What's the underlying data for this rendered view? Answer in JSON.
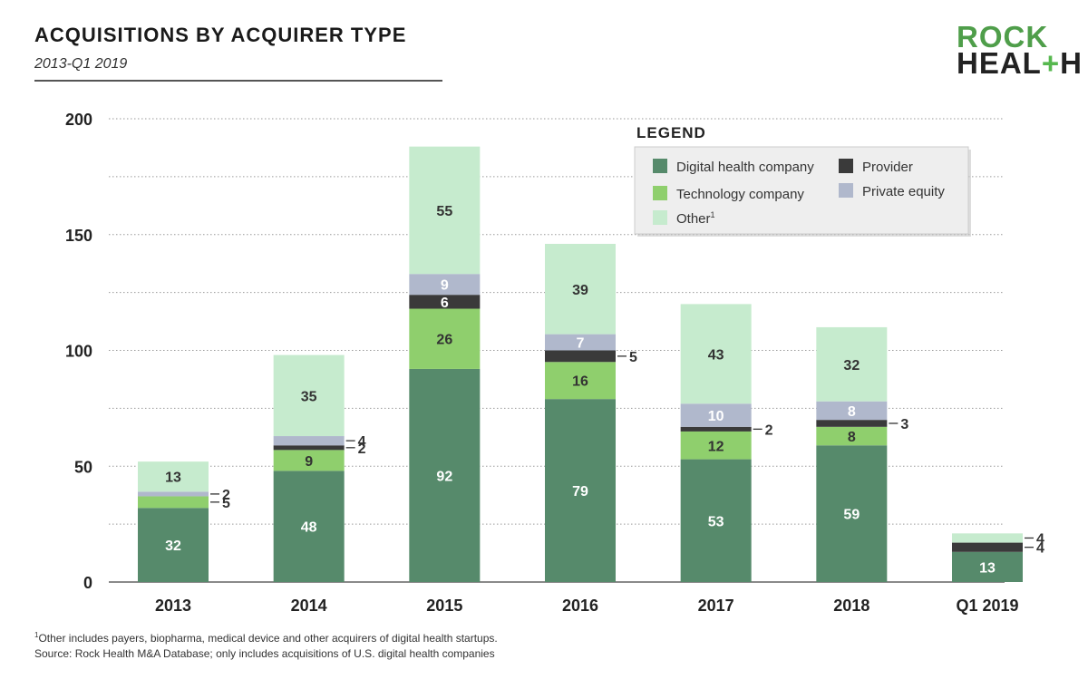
{
  "header": {
    "title": "ACQUISITIONS BY ACQUIRER TYPE",
    "subtitle": "2013-Q1 2019"
  },
  "logo": {
    "line1": "ROCK",
    "line2_a": "HEAL",
    "line2_plus": "+",
    "line2_b": "H"
  },
  "legend": {
    "title": "LEGEND",
    "items": [
      {
        "label": "Digital health company",
        "color": "#568a6b"
      },
      {
        "label": "Technology company",
        "color": "#8fcf6d"
      },
      {
        "label": "Other",
        "sup": "1",
        "color": "#c6ebce"
      },
      {
        "label": "Provider",
        "color": "#3a3a3a"
      },
      {
        "label": "Private equity",
        "color": "#b0b8cc"
      }
    ]
  },
  "chart_data": {
    "type": "bar",
    "stacked": true,
    "categories": [
      "2013",
      "2014",
      "2015",
      "2016",
      "2017",
      "2018",
      "Q1 2019"
    ],
    "ylim": [
      0,
      200
    ],
    "yticks": [
      0,
      50,
      100,
      150,
      200
    ],
    "grid": true,
    "legend_position": "top-right",
    "series": [
      {
        "name": "Digital health company",
        "color": "#568a6b",
        "values": [
          32,
          48,
          92,
          79,
          53,
          59,
          13
        ]
      },
      {
        "name": "Technology company",
        "color": "#8fcf6d",
        "values": [
          5,
          9,
          26,
          16,
          12,
          8,
          0
        ]
      },
      {
        "name": "Provider",
        "color": "#3a3a3a",
        "values": [
          0,
          2,
          6,
          5,
          2,
          3,
          4
        ]
      },
      {
        "name": "Private equity",
        "color": "#b0b8cc",
        "values": [
          2,
          4,
          9,
          7,
          10,
          8,
          0
        ]
      },
      {
        "name": "Other",
        "color": "#c6ebce",
        "values": [
          13,
          35,
          55,
          39,
          43,
          32,
          4
        ]
      }
    ]
  },
  "footnotes": {
    "note1_sup": "1",
    "note1": "Other includes payers, biopharma, medical device and other acquirers of digital health startups.",
    "source": "Source: Rock Health M&A Database; only includes acquisitions of U.S. digital health companies"
  }
}
